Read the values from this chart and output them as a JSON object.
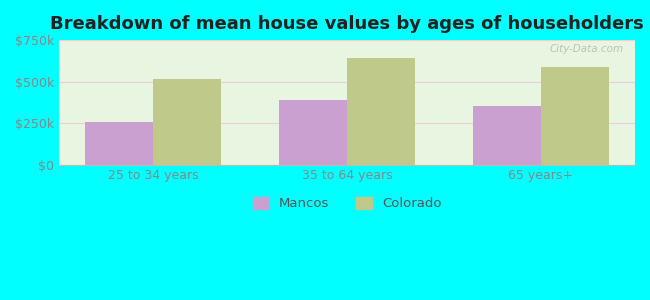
{
  "title": "Breakdown of mean house values by ages of householders",
  "categories": [
    "25 to 34 years",
    "35 to 64 years",
    "65 years+"
  ],
  "mancos_values": [
    255000,
    390000,
    355000
  ],
  "colorado_values": [
    515000,
    645000,
    590000
  ],
  "ylim": [
    0,
    750000
  ],
  "yticks": [
    0,
    250000,
    500000,
    750000
  ],
  "ytick_labels": [
    "$0",
    "$250k",
    "$500k",
    "$750k"
  ],
  "mancos_color": "#c9a0d0",
  "colorado_color": "#bfca8a",
  "outer_bg": "#00ffff",
  "plot_bg": "#e8f5e0",
  "title_fontsize": 13,
  "title_color": "#222222",
  "tick_color": "#888888",
  "legend_labels": [
    "Mancos",
    "Colorado"
  ],
  "bar_width": 0.35,
  "watermark": "City-Data.com"
}
